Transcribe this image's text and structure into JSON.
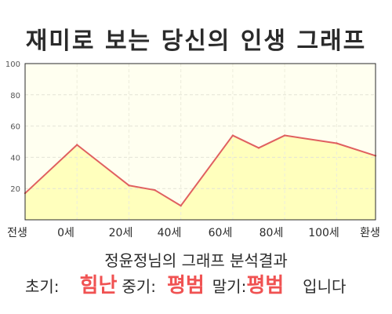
{
  "title": "재미로 보는 당신의 인생 그래프",
  "chart_data": {
    "type": "area",
    "x_labels": [
      "전생",
      "0세",
      "20세",
      "40세",
      "60세",
      "80세",
      "100세",
      "환생"
    ],
    "x": [
      -20,
      0,
      20,
      30,
      40,
      60,
      70,
      80,
      100,
      115
    ],
    "values": [
      17,
      48,
      22,
      19,
      9,
      54,
      46,
      54,
      49,
      41
    ],
    "xlim": [
      -20,
      115
    ],
    "ylim": [
      0,
      100
    ],
    "yticks": [
      20,
      40,
      60,
      80,
      100
    ],
    "grid": true,
    "line_color": "#e06060",
    "fill_color": "#ffffbd",
    "plot_bg": "#fffff0",
    "title": "재미로 보는 당신의 인생 그래프",
    "xlabel": "",
    "ylabel": ""
  },
  "result": {
    "heading": "정윤정님의 그래프 분석결과",
    "early_label": "초기:",
    "early_value": "힘난",
    "middle_label": "중기:",
    "middle_value": "평범",
    "late_label": "말기:",
    "late_value": "평범",
    "suffix": "입니다"
  }
}
